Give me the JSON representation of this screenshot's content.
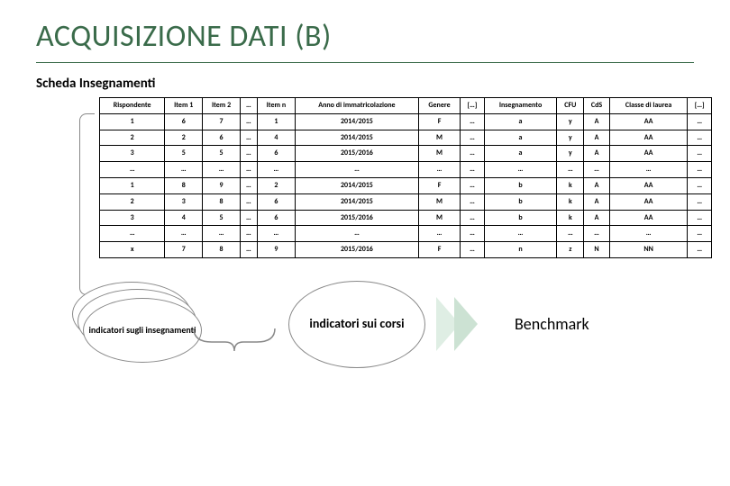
{
  "title": "ACQUISIZIONE DATI (B)",
  "subtitle": "Scheda Insegnamenti",
  "table": {
    "headers": [
      "Rispondente",
      "Item 1",
      "Item 2",
      "…",
      "Item n",
      "Anno di immatricolazione",
      "Genere",
      "[…]",
      "Insegnamento",
      "CFU",
      "CdS",
      "Classe di laurea",
      "[…]"
    ],
    "rows": [
      [
        "1",
        "6",
        "7",
        "…",
        "1",
        "2014/2015",
        "F",
        "…",
        "a",
        "y",
        "A",
        "AA",
        "…"
      ],
      [
        "2",
        "2",
        "6",
        "…",
        "4",
        "2014/2015",
        "M",
        "…",
        "a",
        "y",
        "A",
        "AA",
        "…"
      ],
      [
        "3",
        "5",
        "5",
        "…",
        "6",
        "2015/2016",
        "M",
        "…",
        "a",
        "y",
        "A",
        "AA",
        "…"
      ],
      [
        "…",
        "…",
        "…",
        "…",
        "…",
        "…",
        "…",
        "…",
        "…",
        "…",
        "…",
        "…",
        "…"
      ],
      [
        "1",
        "8",
        "9",
        "…",
        "2",
        "2014/2015",
        "F",
        "…",
        "b",
        "k",
        "A",
        "AA",
        "…"
      ],
      [
        "2",
        "3",
        "8",
        "…",
        "6",
        "2014/2015",
        "M",
        "…",
        "b",
        "k",
        "A",
        "AA",
        "…"
      ],
      [
        "3",
        "4",
        "5",
        "…",
        "6",
        "2015/2016",
        "M",
        "…",
        "b",
        "k",
        "A",
        "AA",
        "…"
      ],
      [
        "…",
        "…",
        "…",
        "…",
        "…",
        "…",
        "…",
        "…",
        "…",
        "…",
        "…",
        "…",
        "…"
      ],
      [
        "x",
        "7",
        "8",
        "…",
        "9",
        "2015/2016",
        "F",
        "…",
        "n",
        "z",
        "N",
        "NN",
        "…"
      ]
    ]
  },
  "ovals_label": "indicatori sugli insegnamenti",
  "big_oval_label": "indicatori sui corsi",
  "benchmark_label": "Benchmark",
  "colors": {
    "title": "#3a6b4a",
    "border": "#000000",
    "oval_border": "#888888",
    "chevron1": "#dfeee4",
    "chevron2": "#cce2d3"
  }
}
